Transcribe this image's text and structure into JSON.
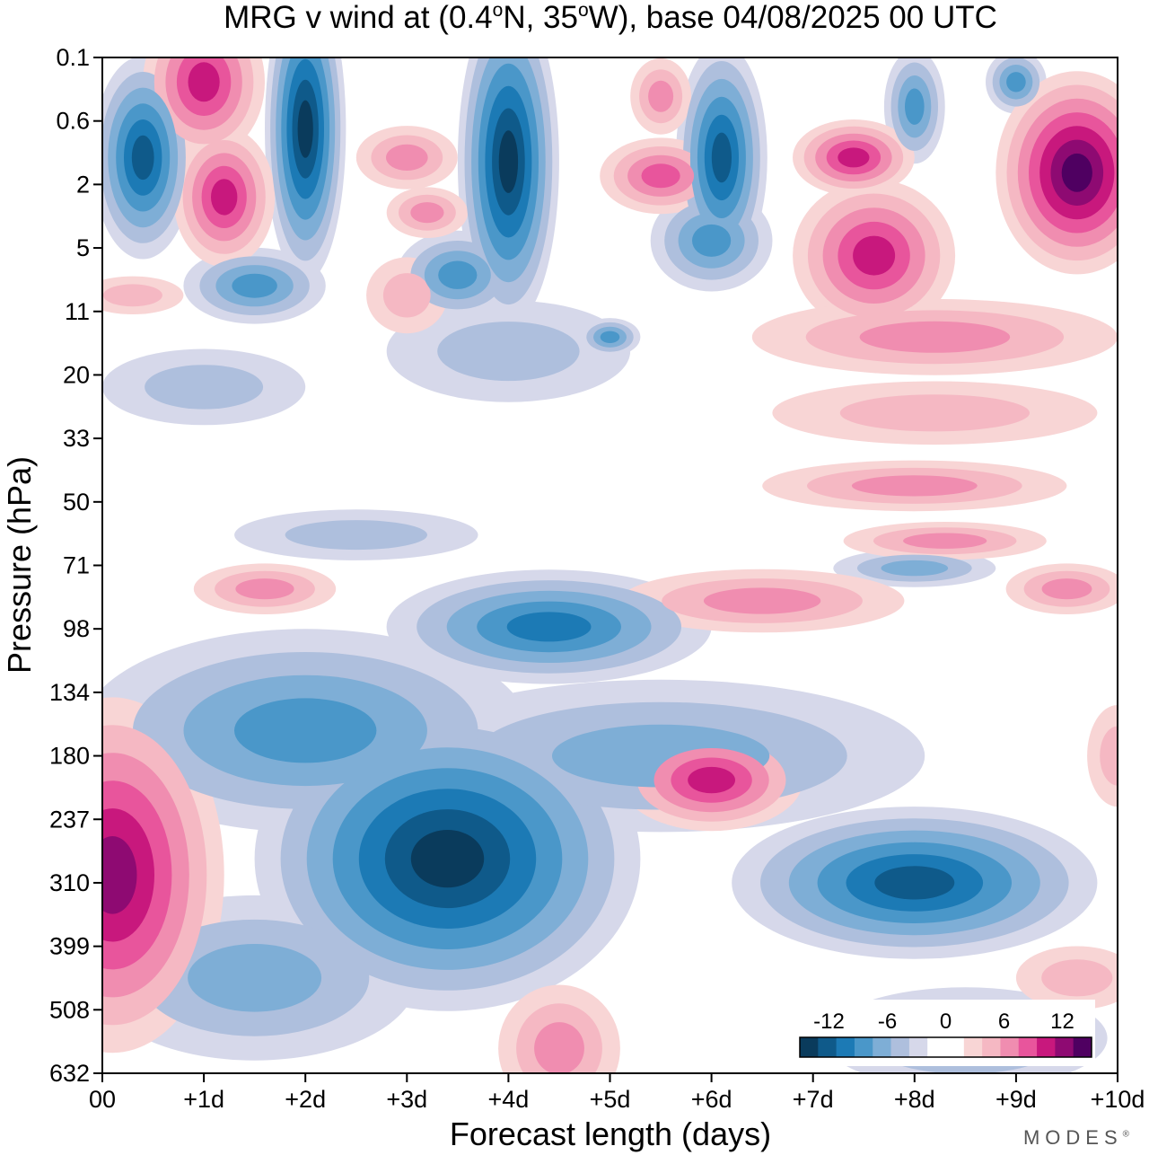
{
  "chart_data": {
    "type": "heatmap",
    "title": "MRG v wind at (0.4°N, 35°W),  base 04/08/2025  00 UTC",
    "title_parts": {
      "prefix": "MRG v wind at (0.4",
      "deg1": "o",
      "mid": "N, 35",
      "deg2": "o",
      "suffix": "W),  base 04/08/2025  00 UTC"
    },
    "xlabel": "Forecast length (days)",
    "ylabel": "Pressure (hPa)",
    "x_ticks": [
      "00",
      "+1d",
      "+2d",
      "+3d",
      "+4d",
      "+5d",
      "+6d",
      "+7d",
      "+8d",
      "+9d",
      "+10d"
    ],
    "x_range_days": [
      0,
      10
    ],
    "y_ticks": [
      "0.1",
      "0.6",
      "2",
      "5",
      "11",
      "20",
      "33",
      "50",
      "71",
      "98",
      "134",
      "180",
      "237",
      "310",
      "399",
      "508",
      "632"
    ],
    "y_range_hPa": [
      0.1,
      632
    ],
    "colorbar": {
      "labels": [
        "-12",
        "-6",
        "0",
        "6",
        "12"
      ],
      "label_values": [
        -12,
        -6,
        0,
        6,
        12
      ],
      "levels": [
        -15,
        -13.5,
        -12,
        -10.5,
        -9,
        -7.5,
        -6,
        -4.5,
        -3,
        -1.5,
        0,
        1.5,
        3,
        4.5,
        6,
        7.5,
        9,
        10.5,
        12,
        13.5,
        15
      ],
      "colors": [
        "#0a3b5c",
        "#0f5a8a",
        "#1c7ab5",
        "#4a97c9",
        "#7eaed6",
        "#aebfdd",
        "#d6d8ea",
        "#ffffff",
        "#ffffff",
        "#f8d5d5",
        "#f5b8c3",
        "#f08db0",
        "#e8559c",
        "#c8187d",
        "#8e0a72",
        "#4f0061"
      ]
    },
    "features": [
      {
        "sign": "neg",
        "peak": -15,
        "day": 3.4,
        "hPa": 280
      },
      {
        "sign": "neg",
        "peak": -10.5,
        "day": 8.0,
        "hPa": 310
      },
      {
        "sign": "neg",
        "peak": -7.5,
        "day": 4.4,
        "hPa": 97
      },
      {
        "sign": "pos",
        "peak": 10.5,
        "day": 0.1,
        "hPa": 300
      },
      {
        "sign": "pos",
        "peak": 7.5,
        "day": 6.0,
        "hPa": 200
      },
      {
        "sign": "pos",
        "peak": 15,
        "day": 9.6,
        "hPa": 1.6
      },
      {
        "sign": "neg",
        "peak": -15,
        "day": 4.0,
        "hPa": 1.5
      },
      {
        "sign": "neg",
        "peak": -13.5,
        "day": 2.0,
        "hPa": 0.6
      }
    ]
  },
  "brand": "MODES",
  "brand_mark": "®"
}
